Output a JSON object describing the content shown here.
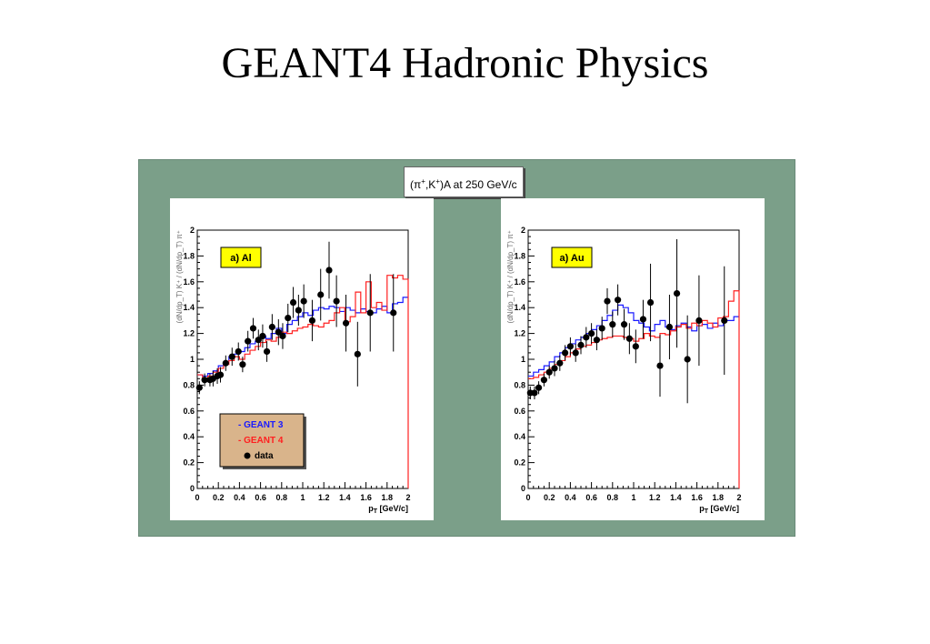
{
  "slide_title": "GEANT4 Hadronic Physics",
  "figure_title": {
    "prefix": "(π",
    "sup1": "+",
    "mid": ",K",
    "sup2": "+",
    "suffix": ")A at 250 GeV/c"
  },
  "colors": {
    "background": "#7b9f89",
    "geant3": "#1a1aff",
    "geant4": "#ff2020",
    "data": "#000000",
    "panel_label_bg": "#ffff00",
    "legend_bg": "#d9b48b"
  },
  "chart_data": [
    {
      "type": "scatter",
      "panel_label": "a) Al",
      "ylabel": "(dN/dp_T) K⁺ / (dN/dp_T) π⁺",
      "xlabel_main": "p",
      "xlabel_sub": "T",
      "xlabel_unit": "[GeV/c]",
      "xlim": [
        0,
        2
      ],
      "ylim": [
        0,
        2
      ],
      "xticks": [
        "0",
        "0.2",
        "0.4",
        "0.6",
        "0.8",
        "1",
        "1.2",
        "1.4",
        "1.6",
        "1.8",
        "2"
      ],
      "yticks": [
        "0",
        "0.2",
        "0.4",
        "0.6",
        "0.8",
        "1",
        "1.2",
        "1.4",
        "1.6",
        "1.8",
        "2"
      ],
      "legend": {
        "placement": "bottom-left",
        "entries": [
          "- GEANT 3",
          "- GEANT 4",
          "data"
        ]
      },
      "series": [
        {
          "name": "GEANT 3",
          "kind": "step",
          "x": [
            0,
            0.05,
            0.1,
            0.15,
            0.2,
            0.25,
            0.3,
            0.35,
            0.4,
            0.45,
            0.5,
            0.55,
            0.6,
            0.65,
            0.7,
            0.75,
            0.8,
            0.85,
            0.9,
            0.95,
            1.0,
            1.05,
            1.1,
            1.15,
            1.2,
            1.25,
            1.3,
            1.35,
            1.4,
            1.45,
            1.5,
            1.55,
            1.6,
            1.65,
            1.7,
            1.75,
            1.8,
            1.85,
            1.9,
            1.95,
            2.0
          ],
          "y": [
            0.88,
            0.87,
            0.89,
            0.91,
            0.95,
            0.98,
            1.02,
            1.04,
            1.06,
            1.09,
            1.12,
            1.14,
            1.18,
            1.16,
            1.2,
            1.24,
            1.2,
            1.27,
            1.3,
            1.33,
            1.36,
            1.34,
            1.38,
            1.4,
            1.39,
            1.41,
            1.4,
            1.37,
            1.4,
            1.38,
            1.36,
            1.39,
            1.37,
            1.36,
            1.39,
            1.41,
            1.36,
            1.43,
            1.44,
            1.48,
            1.48
          ]
        },
        {
          "name": "GEANT 4",
          "kind": "step",
          "x": [
            0,
            0.05,
            0.1,
            0.15,
            0.2,
            0.25,
            0.3,
            0.35,
            0.4,
            0.45,
            0.5,
            0.55,
            0.6,
            0.65,
            0.7,
            0.75,
            0.8,
            0.85,
            0.9,
            0.95,
            1.0,
            1.05,
            1.1,
            1.15,
            1.2,
            1.25,
            1.3,
            1.35,
            1.4,
            1.45,
            1.5,
            1.55,
            1.6,
            1.65,
            1.7,
            1.75,
            1.8,
            1.85,
            1.9,
            1.95,
            2.0
          ],
          "y": [
            0.88,
            0.85,
            0.87,
            0.9,
            0.93,
            0.96,
            0.99,
            1.02,
            1.0,
            1.04,
            1.07,
            1.1,
            1.13,
            1.15,
            1.14,
            1.17,
            1.21,
            1.2,
            1.22,
            1.24,
            1.25,
            1.27,
            1.26,
            1.25,
            1.28,
            1.3,
            1.36,
            1.4,
            1.29,
            1.33,
            1.52,
            1.36,
            1.6,
            1.4,
            1.44,
            1.38,
            1.65,
            1.63,
            1.65,
            1.62,
            1.62
          ]
        },
        {
          "name": "data",
          "kind": "points",
          "x": [
            0.02,
            0.07,
            0.12,
            0.15,
            0.19,
            0.22,
            0.27,
            0.33,
            0.39,
            0.43,
            0.48,
            0.53,
            0.58,
            0.62,
            0.66,
            0.71,
            0.77,
            0.81,
            0.86,
            0.91,
            0.96,
            1.01,
            1.09,
            1.17,
            1.25,
            1.32,
            1.41,
            1.52,
            1.64,
            1.86
          ],
          "y": [
            0.78,
            0.84,
            0.84,
            0.85,
            0.87,
            0.88,
            0.97,
            1.02,
            1.06,
            0.96,
            1.14,
            1.24,
            1.15,
            1.18,
            1.06,
            1.25,
            1.21,
            1.18,
            1.32,
            1.44,
            1.38,
            1.45,
            1.3,
            1.5,
            1.69,
            1.45,
            1.28,
            1.04,
            1.36,
            1.36
          ],
          "err": [
            0.05,
            0.05,
            0.05,
            0.06,
            0.06,
            0.06,
            0.06,
            0.07,
            0.07,
            0.06,
            0.08,
            0.08,
            0.08,
            0.09,
            0.08,
            0.1,
            0.1,
            0.1,
            0.11,
            0.12,
            0.12,
            0.13,
            0.16,
            0.2,
            0.22,
            0.2,
            0.22,
            0.25,
            0.3,
            0.3
          ]
        }
      ]
    },
    {
      "type": "scatter",
      "panel_label": "a) Au",
      "ylabel": "(dN/dp_T) K⁺ / (dN/dp_T) π⁺",
      "xlabel_main": "p",
      "xlabel_sub": "T",
      "xlabel_unit": "[GeV/c]",
      "xlim": [
        0,
        2
      ],
      "ylim": [
        0,
        2
      ],
      "xticks": [
        "0",
        "0.2",
        "0.4",
        "0.6",
        "0.8",
        "1",
        "1.2",
        "1.4",
        "1.6",
        "1.8",
        "2"
      ],
      "yticks": [
        "0",
        "0.2",
        "0.4",
        "0.6",
        "0.8",
        "1",
        "1.2",
        "1.4",
        "1.6",
        "1.8",
        "2"
      ],
      "series": [
        {
          "name": "GEANT 3",
          "kind": "step",
          "x": [
            0,
            0.05,
            0.1,
            0.15,
            0.2,
            0.25,
            0.3,
            0.35,
            0.4,
            0.45,
            0.5,
            0.55,
            0.6,
            0.65,
            0.7,
            0.75,
            0.8,
            0.85,
            0.9,
            0.95,
            1.0,
            1.05,
            1.1,
            1.15,
            1.2,
            1.25,
            1.3,
            1.35,
            1.4,
            1.45,
            1.5,
            1.55,
            1.6,
            1.65,
            1.7,
            1.75,
            1.8,
            1.85,
            1.9,
            1.95,
            2.0
          ],
          "y": [
            0.87,
            0.9,
            0.92,
            0.95,
            0.98,
            1.02,
            1.05,
            1.09,
            1.12,
            1.15,
            1.17,
            1.2,
            1.23,
            1.26,
            1.3,
            1.34,
            1.38,
            1.42,
            1.4,
            1.36,
            1.3,
            1.28,
            1.25,
            1.22,
            1.27,
            1.3,
            1.25,
            1.23,
            1.26,
            1.28,
            1.25,
            1.22,
            1.26,
            1.27,
            1.24,
            1.28,
            1.26,
            1.3,
            1.3,
            1.33,
            1.3
          ]
        },
        {
          "name": "GEANT 4",
          "kind": "step",
          "x": [
            0,
            0.05,
            0.1,
            0.15,
            0.2,
            0.25,
            0.3,
            0.35,
            0.4,
            0.45,
            0.5,
            0.55,
            0.6,
            0.65,
            0.7,
            0.75,
            0.8,
            0.85,
            0.9,
            0.95,
            1.0,
            1.05,
            1.1,
            1.15,
            1.2,
            1.25,
            1.3,
            1.35,
            1.4,
            1.45,
            1.5,
            1.55,
            1.6,
            1.65,
            1.7,
            1.75,
            1.8,
            1.85,
            1.9,
            1.95,
            2.0
          ],
          "y": [
            0.85,
            0.86,
            0.88,
            0.9,
            0.93,
            0.96,
            0.99,
            1.02,
            1.05,
            1.08,
            1.1,
            1.11,
            1.13,
            1.15,
            1.16,
            1.17,
            1.18,
            1.18,
            1.17,
            1.16,
            1.14,
            1.16,
            1.2,
            1.18,
            1.17,
            1.2,
            1.19,
            1.22,
            1.25,
            1.27,
            1.24,
            1.28,
            1.26,
            1.3,
            1.28,
            1.25,
            1.32,
            1.33,
            1.45,
            1.53,
            1.4
          ]
        },
        {
          "name": "data",
          "kind": "points",
          "x": [
            0.02,
            0.06,
            0.1,
            0.15,
            0.2,
            0.25,
            0.3,
            0.35,
            0.4,
            0.45,
            0.5,
            0.55,
            0.6,
            0.65,
            0.7,
            0.75,
            0.8,
            0.85,
            0.91,
            0.96,
            1.02,
            1.09,
            1.16,
            1.25,
            1.34,
            1.41,
            1.51,
            1.62,
            1.86
          ],
          "y": [
            0.74,
            0.74,
            0.78,
            0.84,
            0.9,
            0.93,
            0.97,
            1.05,
            1.1,
            1.05,
            1.11,
            1.17,
            1.2,
            1.15,
            1.24,
            1.45,
            1.27,
            1.46,
            1.27,
            1.16,
            1.1,
            1.31,
            1.44,
            0.95,
            1.25,
            1.51,
            1.0,
            1.3,
            1.3
          ]
        },
        {
          "name": "data-errors",
          "kind": "errors",
          "err": [
            0.05,
            0.05,
            0.05,
            0.05,
            0.05,
            0.06,
            0.06,
            0.06,
            0.07,
            0.07,
            0.07,
            0.08,
            0.08,
            0.08,
            0.09,
            0.1,
            0.1,
            0.12,
            0.12,
            0.12,
            0.13,
            0.15,
            0.3,
            0.24,
            0.25,
            0.42,
            0.34,
            0.35,
            0.42
          ]
        }
      ]
    }
  ]
}
